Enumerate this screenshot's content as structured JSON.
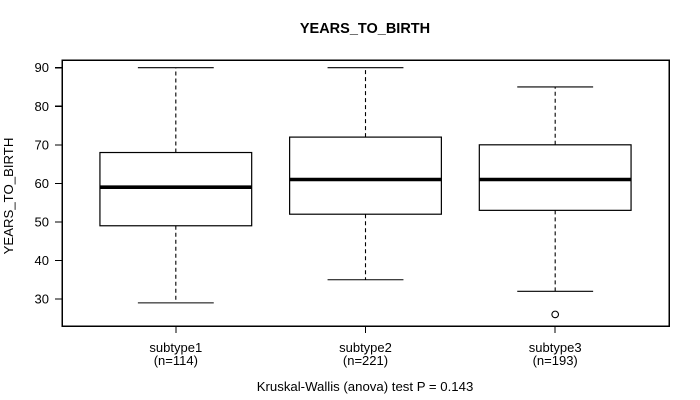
{
  "chart_data": {
    "type": "boxplot",
    "title": "YEARS_TO_BIRTH",
    "ylabel": "YEARS_TO_BIRTH",
    "footer": "Kruskal-Wallis (anova) test P = 0.143",
    "ylim": [
      23,
      92
    ],
    "yticks": [
      30,
      40,
      50,
      60,
      70,
      80,
      90
    ],
    "xlim": [
      0.4,
      3.6
    ],
    "box_width": 0.8,
    "grid": false,
    "legend": "none",
    "categories": [
      "subtype1",
      "subtype2",
      "subtype3"
    ],
    "groups": [
      {
        "label": "subtype1",
        "n_label": "(n=114)",
        "n": 114,
        "lower_whisker": 29,
        "q1": 49,
        "median": 59,
        "q3": 68,
        "upper_whisker": 90,
        "outliers": []
      },
      {
        "label": "subtype2",
        "n_label": "(n=221)",
        "n": 221,
        "lower_whisker": 35,
        "q1": 52,
        "median": 61,
        "q3": 72,
        "upper_whisker": 90,
        "outliers": []
      },
      {
        "label": "subtype3",
        "n_label": "(n=193)",
        "n": 193,
        "lower_whisker": 32,
        "q1": 53,
        "median": 61,
        "q3": 70,
        "upper_whisker": 85,
        "outliers": [
          26
        ]
      }
    ],
    "colors": {
      "stroke": "#000000",
      "box_fill": "#ffffff",
      "background": "#ffffff"
    }
  }
}
